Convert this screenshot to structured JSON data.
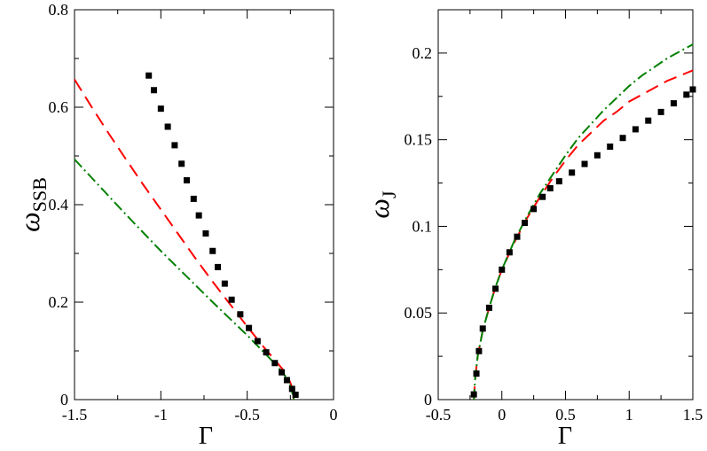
{
  "figure": {
    "background": "#ffffff",
    "axis_color": "#000000"
  },
  "chart_data": [
    {
      "type": "line",
      "title": "",
      "xlabel": "Γ",
      "ylabel": {
        "main": "ω",
        "sub": "SSB"
      },
      "xlim": [
        -1.5,
        0
      ],
      "ylim": [
        0,
        0.8
      ],
      "xticks": [
        -1.5,
        -1,
        -0.5,
        0
      ],
      "xtick_labels": [
        "-1.5",
        "-1",
        "-0.5",
        "0"
      ],
      "yticks": [
        0,
        0.2,
        0.4,
        0.6,
        0.8
      ],
      "ytick_labels": [
        "0",
        "0.2",
        "0.4",
        "0.6",
        "0.8"
      ],
      "grid": false,
      "legend": "none",
      "series": [
        {
          "style": "dashed",
          "color": "#ff0000",
          "points": [
            [
              -1.5,
              0.657
            ],
            [
              -1.4,
              0.6
            ],
            [
              -1.3,
              0.545
            ],
            [
              -1.2,
              0.492
            ],
            [
              -1.1,
              0.44
            ],
            [
              -1.0,
              0.39
            ],
            [
              -0.9,
              0.34
            ],
            [
              -0.8,
              0.29
            ],
            [
              -0.7,
              0.242
            ],
            [
              -0.6,
              0.196
            ],
            [
              -0.5,
              0.15
            ],
            [
              -0.4,
              0.106
            ],
            [
              -0.32,
              0.073
            ],
            [
              -0.27,
              0.052
            ],
            [
              -0.245,
              0.03
            ],
            [
              -0.23,
              0.0
            ]
          ]
        },
        {
          "style": "dashdot",
          "color": "#008000",
          "points": [
            [
              -1.5,
              0.493
            ],
            [
              -1.4,
              0.455
            ],
            [
              -1.3,
              0.417
            ],
            [
              -1.2,
              0.379
            ],
            [
              -1.1,
              0.342
            ],
            [
              -1.0,
              0.305
            ],
            [
              -0.9,
              0.27
            ],
            [
              -0.8,
              0.235
            ],
            [
              -0.7,
              0.2
            ],
            [
              -0.6,
              0.166
            ],
            [
              -0.5,
              0.132
            ],
            [
              -0.4,
              0.096
            ],
            [
              -0.32,
              0.066
            ],
            [
              -0.27,
              0.044
            ],
            [
              -0.245,
              0.024
            ],
            [
              -0.23,
              0.0
            ]
          ]
        },
        {
          "style": "dotted",
          "color": "#000000",
          "points": [
            [
              -1.07,
              0.665
            ],
            [
              -1.04,
              0.635
            ],
            [
              -1.0,
              0.597
            ],
            [
              -0.96,
              0.56
            ],
            [
              -0.92,
              0.522
            ],
            [
              -0.88,
              0.484
            ],
            [
              -0.85,
              0.45
            ],
            [
              -0.81,
              0.412
            ],
            [
              -0.78,
              0.378
            ],
            [
              -0.74,
              0.341
            ],
            [
              -0.7,
              0.305
            ],
            [
              -0.67,
              0.272
            ],
            [
              -0.63,
              0.238
            ],
            [
              -0.59,
              0.205
            ],
            [
              -0.54,
              0.175
            ],
            [
              -0.49,
              0.147
            ],
            [
              -0.44,
              0.12
            ],
            [
              -0.39,
              0.097
            ],
            [
              -0.34,
              0.075
            ],
            [
              -0.3,
              0.056
            ],
            [
              -0.27,
              0.04
            ],
            [
              -0.24,
              0.022
            ],
            [
              -0.22,
              0.01
            ]
          ]
        }
      ]
    },
    {
      "type": "line",
      "title": "",
      "xlabel": "Γ",
      "ylabel": {
        "main": "ω",
        "sub": "J"
      },
      "xlim": [
        -0.5,
        1.5
      ],
      "ylim": [
        0,
        0.225
      ],
      "xticks": [
        -0.5,
        0,
        0.5,
        1,
        1.5
      ],
      "xtick_labels": [
        "-0.5",
        "0",
        "0.5",
        "1",
        "1.5"
      ],
      "yticks": [
        0,
        0.05,
        0.1,
        0.15,
        0.2
      ],
      "ytick_labels": [
        "0",
        "0.05",
        "0.1",
        "0.15",
        "0.2"
      ],
      "grid": false,
      "legend": "none",
      "series": [
        {
          "style": "dashed",
          "color": "#ff0000",
          "points": [
            [
              -0.22,
              0.0
            ],
            [
              -0.21,
              0.012
            ],
            [
              -0.19,
              0.025
            ],
            [
              -0.15,
              0.04
            ],
            [
              -0.1,
              0.053
            ],
            [
              -0.05,
              0.065
            ],
            [
              0.0,
              0.075
            ],
            [
              0.1,
              0.091
            ],
            [
              0.2,
              0.105
            ],
            [
              0.3,
              0.117
            ],
            [
              0.4,
              0.128
            ],
            [
              0.5,
              0.138
            ],
            [
              0.6,
              0.147
            ],
            [
              0.7,
              0.154
            ],
            [
              0.8,
              0.161
            ],
            [
              0.9,
              0.166
            ],
            [
              1.0,
              0.172
            ],
            [
              1.1,
              0.176
            ],
            [
              1.2,
              0.18
            ],
            [
              1.3,
              0.184
            ],
            [
              1.4,
              0.187
            ],
            [
              1.5,
              0.19
            ]
          ]
        },
        {
          "style": "dashdot",
          "color": "#008000",
          "points": [
            [
              -0.22,
              0.0
            ],
            [
              -0.21,
              0.012
            ],
            [
              -0.19,
              0.025
            ],
            [
              -0.15,
              0.04
            ],
            [
              -0.1,
              0.053
            ],
            [
              -0.05,
              0.065
            ],
            [
              0.0,
              0.075
            ],
            [
              0.1,
              0.092
            ],
            [
              0.2,
              0.106
            ],
            [
              0.3,
              0.119
            ],
            [
              0.4,
              0.13
            ],
            [
              0.5,
              0.141
            ],
            [
              0.6,
              0.151
            ],
            [
              0.7,
              0.159
            ],
            [
              0.8,
              0.167
            ],
            [
              0.9,
              0.174
            ],
            [
              1.0,
              0.181
            ],
            [
              1.1,
              0.187
            ],
            [
              1.2,
              0.192
            ],
            [
              1.3,
              0.197
            ],
            [
              1.4,
              0.201
            ],
            [
              1.5,
              0.205
            ]
          ]
        },
        {
          "style": "dotted",
          "color": "#000000",
          "points": [
            [
              -0.22,
              0.003
            ],
            [
              -0.2,
              0.015
            ],
            [
              -0.18,
              0.028
            ],
            [
              -0.15,
              0.041
            ],
            [
              -0.1,
              0.053
            ],
            [
              -0.05,
              0.064
            ],
            [
              0.0,
              0.075
            ],
            [
              0.06,
              0.085
            ],
            [
              0.12,
              0.094
            ],
            [
              0.18,
              0.102
            ],
            [
              0.25,
              0.11
            ],
            [
              0.32,
              0.117
            ],
            [
              0.38,
              0.122
            ],
            [
              0.45,
              0.126
            ],
            [
              0.55,
              0.131
            ],
            [
              0.65,
              0.136
            ],
            [
              0.75,
              0.141
            ],
            [
              0.85,
              0.146
            ],
            [
              0.95,
              0.151
            ],
            [
              1.05,
              0.156
            ],
            [
              1.15,
              0.161
            ],
            [
              1.25,
              0.166
            ],
            [
              1.35,
              0.171
            ],
            [
              1.45,
              0.176
            ],
            [
              1.5,
              0.179
            ]
          ]
        }
      ]
    }
  ]
}
